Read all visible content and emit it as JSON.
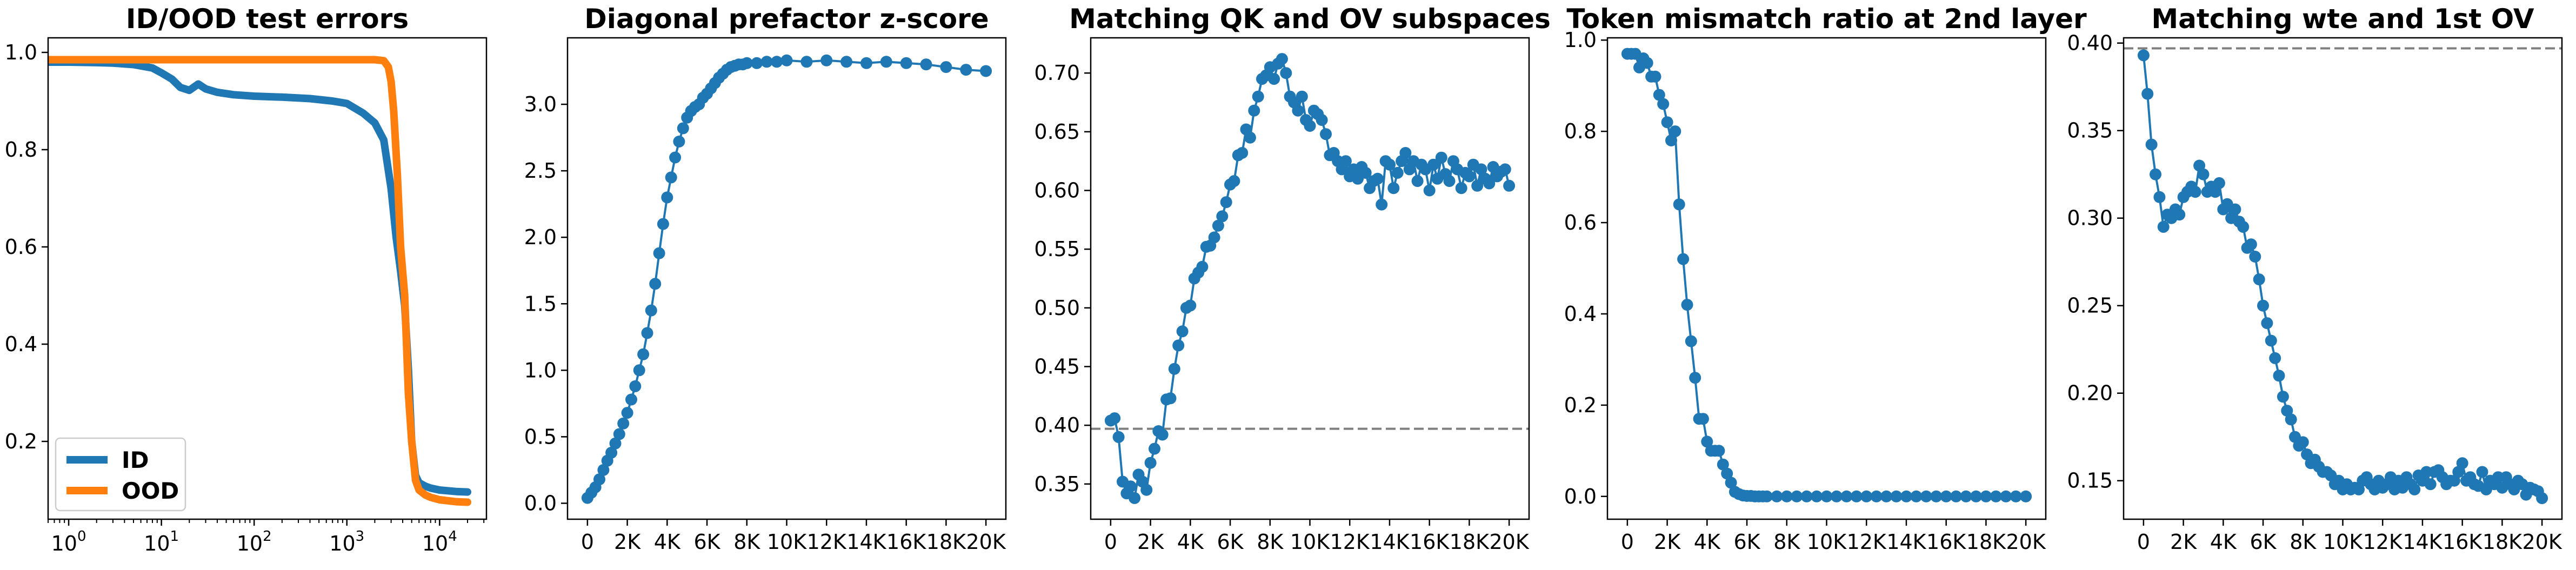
{
  "figure": {
    "colors": {
      "blue": "#1f77b4",
      "orange": "#ff7f0e",
      "ref": "#7f7f7f"
    }
  },
  "chart_data": [
    {
      "type": "line",
      "title": "ID/OOD test errors",
      "xscale": "log",
      "xlim": [
        0.6,
        32000
      ],
      "ylim": [
        0.04,
        1.03
      ],
      "xticks": [
        1,
        10,
        100,
        1000,
        10000
      ],
      "xtick_labels": [
        {
          "base": "10",
          "exp": "0"
        },
        {
          "base": "10",
          "exp": "1"
        },
        {
          "base": "10",
          "exp": "2"
        },
        {
          "base": "10",
          "exp": "3"
        },
        {
          "base": "10",
          "exp": "4"
        }
      ],
      "yticks": [
        0.2,
        0.4,
        0.6,
        0.8,
        1.0
      ],
      "ytick_labels": [
        "0.2",
        "0.4",
        "0.6",
        "0.8",
        "1.0"
      ],
      "legend": {
        "placement": "lower-left",
        "entries": [
          "ID",
          "OOD"
        ]
      },
      "series": [
        {
          "name": "ID",
          "color": "#1f77b4",
          "x": [
            0.6,
            1,
            2,
            3,
            5,
            8,
            10,
            13,
            16,
            20,
            25,
            30,
            40,
            60,
            100,
            200,
            400,
            700,
            1000,
            1500,
            2000,
            2500,
            3000,
            3400,
            3800,
            4200,
            4600,
            5000,
            5500,
            6000,
            7000,
            8000,
            10000,
            15000,
            20000
          ],
          "y": [
            0.98,
            0.98,
            0.979,
            0.978,
            0.975,
            0.968,
            0.958,
            0.945,
            0.928,
            0.922,
            0.935,
            0.925,
            0.918,
            0.913,
            0.91,
            0.908,
            0.905,
            0.9,
            0.895,
            0.875,
            0.855,
            0.82,
            0.72,
            0.62,
            0.55,
            0.48,
            0.35,
            0.2,
            0.13,
            0.115,
            0.108,
            0.104,
            0.1,
            0.097,
            0.096
          ]
        },
        {
          "name": "OOD",
          "color": "#ff7f0e",
          "x": [
            0.6,
            1,
            10,
            100,
            1000,
            2000,
            2500,
            2800,
            3000,
            3200,
            3500,
            3800,
            4200,
            4600,
            5000,
            5500,
            6000,
            7000,
            8000,
            10000,
            15000,
            20000
          ],
          "y": [
            0.985,
            0.985,
            0.985,
            0.985,
            0.985,
            0.985,
            0.983,
            0.97,
            0.94,
            0.88,
            0.75,
            0.6,
            0.5,
            0.3,
            0.2,
            0.12,
            0.1,
            0.09,
            0.085,
            0.08,
            0.076,
            0.075
          ]
        }
      ]
    },
    {
      "type": "line",
      "title": "Diagonal prefactor z-score",
      "xlim": [
        -1000,
        21000
      ],
      "ylim": [
        -0.12,
        3.5
      ],
      "xticks": [
        0,
        2000,
        4000,
        6000,
        8000,
        10000,
        12000,
        14000,
        16000,
        18000,
        20000
      ],
      "xtick_labels": [
        "0",
        "2K",
        "4K",
        "6K",
        "8K",
        "10K",
        "12K",
        "14K",
        "16K",
        "18K",
        "20K"
      ],
      "yticks": [
        0.0,
        0.5,
        1.0,
        1.5,
        2.0,
        2.5,
        3.0
      ],
      "ytick_labels": [
        "0.0",
        "0.5",
        "1.0",
        "1.5",
        "2.0",
        "2.5",
        "3.0"
      ],
      "markers": true,
      "series": [
        {
          "color": "#1f77b4",
          "x": [
            0,
            200,
            400,
            600,
            800,
            1000,
            1200,
            1400,
            1600,
            1800,
            2000,
            2200,
            2400,
            2600,
            2800,
            3000,
            3200,
            3400,
            3600,
            3800,
            4000,
            4200,
            4400,
            4600,
            4800,
            5000,
            5200,
            5400,
            5600,
            5800,
            6000,
            6200,
            6400,
            6600,
            6800,
            7000,
            7200,
            7400,
            7600,
            7800,
            8000,
            8500,
            9000,
            9500,
            10000,
            11000,
            12000,
            13000,
            14000,
            15000,
            16000,
            17000,
            18000,
            19000,
            20000
          ],
          "y": [
            0.04,
            0.08,
            0.12,
            0.18,
            0.25,
            0.32,
            0.38,
            0.45,
            0.52,
            0.6,
            0.68,
            0.78,
            0.88,
            1.0,
            1.12,
            1.28,
            1.45,
            1.65,
            1.88,
            2.1,
            2.3,
            2.45,
            2.6,
            2.72,
            2.82,
            2.9,
            2.95,
            2.98,
            3.0,
            3.05,
            3.08,
            3.12,
            3.16,
            3.2,
            3.23,
            3.26,
            3.28,
            3.29,
            3.3,
            3.3,
            3.31,
            3.31,
            3.32,
            3.32,
            3.33,
            3.32,
            3.33,
            3.32,
            3.31,
            3.32,
            3.31,
            3.3,
            3.28,
            3.26,
            3.25
          ]
        }
      ]
    },
    {
      "type": "line",
      "title": "Matching QK and OV subspaces",
      "xlim": [
        -1000,
        21000
      ],
      "ylim": [
        0.32,
        0.73
      ],
      "xticks": [
        0,
        2000,
        4000,
        6000,
        8000,
        10000,
        12000,
        14000,
        16000,
        18000,
        20000
      ],
      "xtick_labels": [
        "0",
        "2K",
        "4K",
        "6K",
        "8K",
        "10K",
        "12K",
        "14K",
        "16K",
        "18K",
        "20K"
      ],
      "yticks": [
        0.35,
        0.4,
        0.45,
        0.5,
        0.55,
        0.6,
        0.65,
        0.7
      ],
      "ytick_labels": [
        "0.35",
        "0.40",
        "0.45",
        "0.50",
        "0.55",
        "0.60",
        "0.65",
        "0.70"
      ],
      "reference_line": 0.397,
      "markers": true,
      "series": [
        {
          "color": "#1f77b4",
          "x": [
            0,
            200,
            400,
            600,
            800,
            1000,
            1200,
            1400,
            1600,
            1800,
            2000,
            2200,
            2400,
            2600,
            2800,
            3000,
            3200,
            3400,
            3600,
            3800,
            4000,
            4200,
            4400,
            4600,
            4800,
            5000,
            5200,
            5400,
            5600,
            5800,
            6000,
            6200,
            6400,
            6600,
            6800,
            7000,
            7200,
            7400,
            7600,
            7800,
            8000,
            8200,
            8400,
            8600,
            8800,
            9000,
            9200,
            9400,
            9600,
            9800,
            10000,
            10200,
            10400,
            10600,
            10800,
            11000,
            11200,
            11400,
            11600,
            11800,
            12000,
            12200,
            12400,
            12600,
            12800,
            13000,
            13200,
            13400,
            13600,
            13800,
            14000,
            14200,
            14400,
            14600,
            14800,
            15000,
            15200,
            15400,
            15600,
            15800,
            16000,
            16200,
            16400,
            16600,
            16800,
            17000,
            17200,
            17400,
            17600,
            17800,
            18000,
            18200,
            18400,
            18600,
            18800,
            19000,
            19200,
            19400,
            19600,
            19800,
            20000
          ],
          "y": [
            0.404,
            0.406,
            0.39,
            0.352,
            0.342,
            0.348,
            0.338,
            0.358,
            0.352,
            0.345,
            0.368,
            0.38,
            0.395,
            0.392,
            0.422,
            0.423,
            0.448,
            0.468,
            0.48,
            0.5,
            0.502,
            0.525,
            0.53,
            0.535,
            0.552,
            0.553,
            0.56,
            0.57,
            0.578,
            0.59,
            0.605,
            0.608,
            0.63,
            0.632,
            0.652,
            0.645,
            0.668,
            0.68,
            0.695,
            0.698,
            0.705,
            0.695,
            0.708,
            0.712,
            0.7,
            0.68,
            0.675,
            0.668,
            0.68,
            0.66,
            0.655,
            0.668,
            0.665,
            0.66,
            0.648,
            0.63,
            0.632,
            0.625,
            0.618,
            0.625,
            0.612,
            0.618,
            0.61,
            0.62,
            0.615,
            0.602,
            0.608,
            0.61,
            0.588,
            0.625,
            0.622,
            0.602,
            0.615,
            0.625,
            0.632,
            0.618,
            0.625,
            0.608,
            0.622,
            0.618,
            0.6,
            0.622,
            0.61,
            0.628,
            0.614,
            0.608,
            0.625,
            0.618,
            0.602,
            0.615,
            0.612,
            0.622,
            0.604,
            0.618,
            0.61,
            0.606,
            0.62,
            0.612,
            0.616,
            0.618,
            0.604
          ]
        }
      ]
    },
    {
      "type": "line",
      "title": "Token mismatch ratio at 2nd layer",
      "xlim": [
        -1000,
        21000
      ],
      "ylim": [
        -0.05,
        1.005
      ],
      "xticks": [
        0,
        2000,
        4000,
        6000,
        8000,
        10000,
        12000,
        14000,
        16000,
        18000,
        20000
      ],
      "xtick_labels": [
        "0",
        "2K",
        "4K",
        "6K",
        "8K",
        "10K",
        "12K",
        "14K",
        "16K",
        "18K",
        "20K"
      ],
      "yticks": [
        0.0,
        0.2,
        0.4,
        0.6,
        0.8,
        1.0
      ],
      "ytick_labels": [
        "0.0",
        "0.2",
        "0.4",
        "0.6",
        "0.8",
        "1.0"
      ],
      "markers": true,
      "series": [
        {
          "color": "#1f77b4",
          "x": [
            0,
            200,
            400,
            600,
            800,
            1000,
            1200,
            1400,
            1600,
            1800,
            2000,
            2200,
            2400,
            2600,
            2800,
            3000,
            3200,
            3400,
            3600,
            3800,
            4000,
            4200,
            4400,
            4600,
            4800,
            5000,
            5200,
            5400,
            5600,
            5800,
            6000,
            6200,
            6400,
            6600,
            6800,
            7000,
            7500,
            8000,
            8500,
            9000,
            9500,
            10000,
            10500,
            11000,
            11500,
            12000,
            12500,
            13000,
            13500,
            14000,
            14500,
            15000,
            15500,
            16000,
            16500,
            17000,
            17500,
            18000,
            18500,
            19000,
            19500,
            20000
          ],
          "y": [
            0.97,
            0.97,
            0.97,
            0.94,
            0.96,
            0.95,
            0.92,
            0.92,
            0.88,
            0.86,
            0.82,
            0.78,
            0.8,
            0.64,
            0.52,
            0.42,
            0.34,
            0.26,
            0.17,
            0.17,
            0.12,
            0.1,
            0.1,
            0.1,
            0.07,
            0.05,
            0.03,
            0.01,
            0.005,
            0.002,
            0.001,
            0.001,
            0.0,
            0.0,
            0.0,
            0.0,
            0.0,
            0.0,
            0.0,
            0.0,
            0.0,
            0.0,
            0.0,
            0.0,
            0.0,
            0.0,
            0.0,
            0.0,
            0.0,
            0.0,
            0.0,
            0.0,
            0.0,
            0.0,
            0.0,
            0.0,
            0.0,
            0.0,
            0.0,
            0.0,
            0.0,
            0.0
          ]
        }
      ]
    },
    {
      "type": "line",
      "title": "Matching wte and 1st OV",
      "xlim": [
        -1000,
        21000
      ],
      "ylim": [
        0.128,
        0.403
      ],
      "xticks": [
        0,
        2000,
        4000,
        6000,
        8000,
        10000,
        12000,
        14000,
        16000,
        18000,
        20000
      ],
      "xtick_labels": [
        "0",
        "2K",
        "4K",
        "6K",
        "8K",
        "10K",
        "12K",
        "14K",
        "16K",
        "18K",
        "20K"
      ],
      "yticks": [
        0.15,
        0.2,
        0.25,
        0.3,
        0.35,
        0.4
      ],
      "ytick_labels": [
        "0.15",
        "0.20",
        "0.25",
        "0.30",
        "0.35",
        "0.40"
      ],
      "reference_line": 0.397,
      "markers": true,
      "series": [
        {
          "color": "#1f77b4",
          "x": [
            0,
            200,
            400,
            600,
            800,
            1000,
            1200,
            1400,
            1600,
            1800,
            2000,
            2200,
            2400,
            2600,
            2800,
            3000,
            3200,
            3400,
            3600,
            3800,
            4000,
            4200,
            4400,
            4600,
            4800,
            5000,
            5200,
            5400,
            5600,
            5800,
            6000,
            6200,
            6400,
            6600,
            6800,
            7000,
            7200,
            7400,
            7600,
            7800,
            8000,
            8200,
            8400,
            8600,
            8800,
            9000,
            9200,
            9400,
            9600,
            9800,
            10000,
            10200,
            10400,
            10600,
            10800,
            11000,
            11200,
            11400,
            11600,
            11800,
            12000,
            12200,
            12400,
            12600,
            12800,
            13000,
            13200,
            13400,
            13600,
            13800,
            14000,
            14200,
            14400,
            14600,
            14800,
            15000,
            15200,
            15400,
            15600,
            15800,
            16000,
            16200,
            16400,
            16600,
            16800,
            17000,
            17200,
            17400,
            17600,
            17800,
            18000,
            18200,
            18400,
            18600,
            18800,
            19000,
            19200,
            19400,
            19600,
            19800,
            20000
          ],
          "y": [
            0.393,
            0.371,
            0.342,
            0.325,
            0.312,
            0.295,
            0.302,
            0.3,
            0.305,
            0.302,
            0.312,
            0.315,
            0.318,
            0.315,
            0.33,
            0.325,
            0.315,
            0.318,
            0.315,
            0.32,
            0.305,
            0.308,
            0.3,
            0.305,
            0.298,
            0.295,
            0.283,
            0.285,
            0.278,
            0.265,
            0.25,
            0.24,
            0.23,
            0.22,
            0.21,
            0.198,
            0.19,
            0.185,
            0.175,
            0.17,
            0.172,
            0.165,
            0.16,
            0.162,
            0.158,
            0.155,
            0.155,
            0.153,
            0.148,
            0.15,
            0.145,
            0.148,
            0.145,
            0.146,
            0.145,
            0.15,
            0.152,
            0.148,
            0.145,
            0.15,
            0.146,
            0.148,
            0.152,
            0.145,
            0.15,
            0.146,
            0.152,
            0.148,
            0.145,
            0.153,
            0.15,
            0.155,
            0.148,
            0.155,
            0.156,
            0.152,
            0.148,
            0.15,
            0.15,
            0.155,
            0.16,
            0.15,
            0.152,
            0.148,
            0.147,
            0.155,
            0.145,
            0.15,
            0.148,
            0.152,
            0.146,
            0.152,
            0.148,
            0.145,
            0.15,
            0.148,
            0.142,
            0.146,
            0.145,
            0.144,
            0.14
          ]
        }
      ]
    }
  ]
}
